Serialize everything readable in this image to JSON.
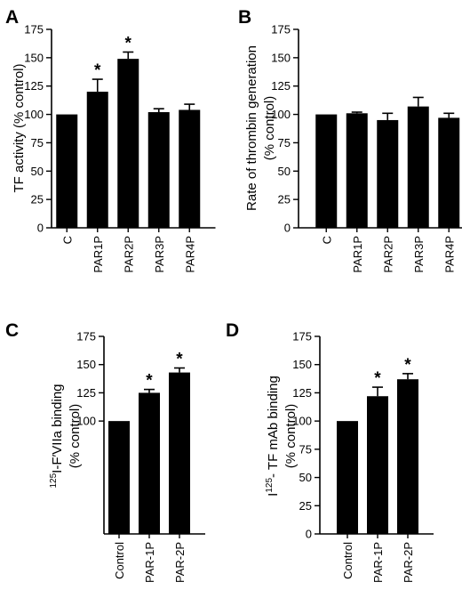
{
  "chart_data": [
    {
      "panel": "A",
      "type": "bar",
      "ylabel": "TF activity (% control)",
      "ylim": [
        0,
        175
      ],
      "yticks": [
        0,
        25,
        50,
        75,
        100,
        125,
        150,
        175
      ],
      "categories": [
        "C",
        "PAR1P",
        "PAR2P",
        "PAR3P",
        "PAR4P"
      ],
      "values": [
        100,
        120,
        149,
        102,
        104
      ],
      "errors": [
        0,
        11,
        6,
        3,
        5
      ],
      "significant": [
        "",
        "*",
        "*",
        "",
        ""
      ],
      "bar_color": "#000000"
    },
    {
      "panel": "B",
      "type": "bar",
      "ylabel": "Rate of thrombin generation|(% control)",
      "ylim": [
        0,
        175
      ],
      "yticks": [
        0,
        25,
        50,
        75,
        100,
        125,
        150,
        175
      ],
      "categories": [
        "C",
        "PAR1P",
        "PAR2P",
        "PAR3P",
        "PAR4P"
      ],
      "values": [
        100,
        101,
        95,
        107,
        97
      ],
      "errors": [
        0,
        1,
        6,
        8,
        4
      ],
      "significant": [
        "",
        "",
        "",
        "",
        ""
      ],
      "bar_color": "#000000"
    },
    {
      "panel": "C",
      "type": "bar",
      "ylabel": "125I-FVIIa binding|(% control)",
      "ylabel_sup": "125",
      "ylabel_rest": "I-F′VIIa binding",
      "ylim": [
        0,
        175
      ],
      "yticks": [
        100,
        125,
        150,
        175
      ],
      "categories": [
        "Control",
        "PAR-1P",
        "PAR-2P"
      ],
      "values": [
        100,
        125,
        143
      ],
      "errors": [
        0,
        3,
        4
      ],
      "significant": [
        "",
        "*",
        "*"
      ],
      "bar_color": "#000000"
    },
    {
      "panel": "D",
      "type": "bar",
      "ylabel": "I125- TF mAb binding|(% control)",
      "ylabel_pre": "I",
      "ylabel_sup": "125",
      "ylabel_rest": "- TF mAb binding",
      "ylim": [
        0,
        175
      ],
      "yticks": [
        0,
        25,
        50,
        75,
        100,
        125,
        150,
        175
      ],
      "categories": [
        "Control",
        "PAR-1P",
        "PAR-2P"
      ],
      "values": [
        100,
        122,
        137
      ],
      "errors": [
        0,
        8,
        5
      ],
      "significant": [
        "",
        "*",
        "*"
      ],
      "bar_color": "#000000"
    }
  ]
}
